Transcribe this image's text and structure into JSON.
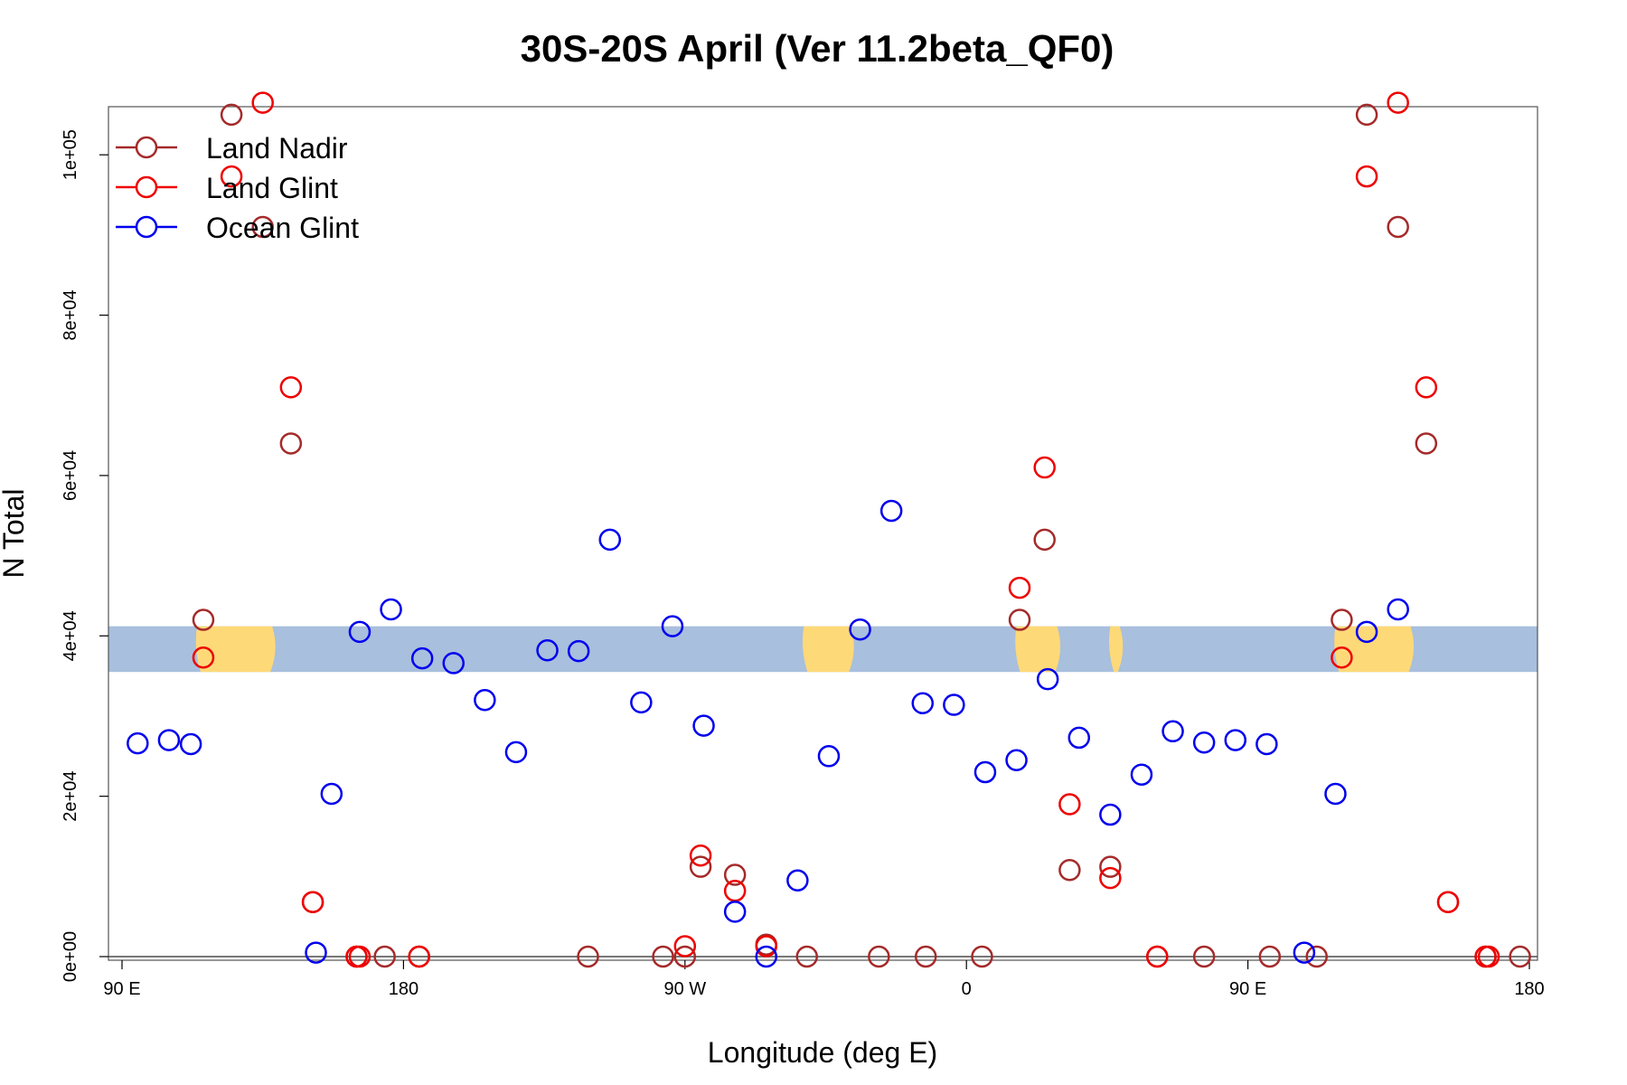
{
  "chart_data": {
    "type": "scatter",
    "title": "30S-20S April (Ver 11.2beta_QF0)",
    "xlabel": "Longitude (deg E)",
    "ylabel": "N Total",
    "xlim": [
      90,
      540
    ],
    "ylim": [
      0,
      106000
    ],
    "x_ticks": [
      {
        "value": 90,
        "label": "90 E"
      },
      {
        "value": 180,
        "label": "180"
      },
      {
        "value": 270,
        "label": "90 W"
      },
      {
        "value": 360,
        "label": "0"
      },
      {
        "value": 450,
        "label": "90 E"
      },
      {
        "value": 540,
        "label": "180"
      }
    ],
    "y_ticks": [
      {
        "value": 0,
        "label": "0e+00"
      },
      {
        "value": 20000,
        "label": "2e+04"
      },
      {
        "value": 40000,
        "label": "4e+04"
      },
      {
        "value": 60000,
        "label": "6e+04"
      },
      {
        "value": 80000,
        "label": "8e+04"
      },
      {
        "value": 100000,
        "label": "1e+05"
      }
    ],
    "legend_position": "top-left",
    "map_band": {
      "y_min": 35500,
      "y_max": 41200,
      "ocean_color": "#A8BFDD",
      "land_color": "#FED978"
    },
    "series": [
      {
        "name": "Land Nadir",
        "color": "#A52A2A",
        "points": [
          [
            116,
            42000
          ],
          [
            125,
            105000
          ],
          [
            135,
            91000
          ],
          [
            144,
            64000
          ],
          [
            151,
            6800
          ],
          [
            165,
            0
          ],
          [
            174,
            0
          ],
          [
            185,
            0
          ],
          [
            239,
            0
          ],
          [
            263,
            0
          ],
          [
            270,
            0
          ],
          [
            275,
            11200
          ],
          [
            286,
            10200
          ],
          [
            296,
            1500
          ],
          [
            309,
            0
          ],
          [
            332,
            0
          ],
          [
            347,
            0
          ],
          [
            365,
            0
          ],
          [
            377,
            42000
          ],
          [
            385,
            52000
          ],
          [
            393,
            10800
          ],
          [
            406,
            11200
          ],
          [
            421,
            0
          ],
          [
            436,
            0
          ],
          [
            457,
            0
          ],
          [
            472,
            0
          ],
          [
            480,
            42000
          ],
          [
            488,
            105000
          ],
          [
            498,
            91000
          ],
          [
            507,
            64000
          ],
          [
            514,
            6800
          ],
          [
            526,
            0
          ],
          [
            537,
            0
          ]
        ]
      },
      {
        "name": "Land Glint",
        "color": "#EE0000",
        "points": [
          [
            116,
            37300
          ],
          [
            125,
            97300
          ],
          [
            135,
            106500
          ],
          [
            144,
            71000
          ],
          [
            151,
            6800
          ],
          [
            165,
            0
          ],
          [
            166,
            0
          ],
          [
            185,
            0
          ],
          [
            270,
            1300
          ],
          [
            275,
            12600
          ],
          [
            286,
            8200
          ],
          [
            296,
            1300
          ],
          [
            377,
            46000
          ],
          [
            385,
            61000
          ],
          [
            393,
            19000
          ],
          [
            406,
            9800
          ],
          [
            421,
            0
          ],
          [
            480,
            37300
          ],
          [
            488,
            97300
          ],
          [
            498,
            106500
          ],
          [
            507,
            71000
          ],
          [
            514,
            6800
          ],
          [
            526,
            0
          ],
          [
            527,
            0
          ]
        ]
      },
      {
        "name": "Ocean Glint",
        "color": "#0000EE",
        "points": [
          [
            95,
            26600
          ],
          [
            105,
            27000
          ],
          [
            112,
            26500
          ],
          [
            152,
            500
          ],
          [
            157,
            20300
          ],
          [
            166,
            40500
          ],
          [
            176,
            43300
          ],
          [
            186,
            37200
          ],
          [
            196,
            36600
          ],
          [
            206,
            32000
          ],
          [
            216,
            25500
          ],
          [
            226,
            38200
          ],
          [
            236,
            38100
          ],
          [
            246,
            52000
          ],
          [
            256,
            31700
          ],
          [
            266,
            41200
          ],
          [
            276,
            28800
          ],
          [
            286,
            5600
          ],
          [
            296,
            0
          ],
          [
            306,
            9500
          ],
          [
            316,
            25000
          ],
          [
            326,
            40800
          ],
          [
            336,
            55600
          ],
          [
            346,
            31600
          ],
          [
            356,
            31400
          ],
          [
            366,
            23000
          ],
          [
            376,
            24500
          ],
          [
            386,
            34600
          ],
          [
            396,
            27300
          ],
          [
            406,
            17700
          ],
          [
            416,
            22700
          ],
          [
            426,
            28100
          ],
          [
            436,
            26700
          ],
          [
            446,
            27000
          ],
          [
            456,
            26500
          ],
          [
            468,
            500
          ],
          [
            478,
            20300
          ],
          [
            488,
            40500
          ],
          [
            498,
            43300
          ]
        ]
      }
    ]
  }
}
